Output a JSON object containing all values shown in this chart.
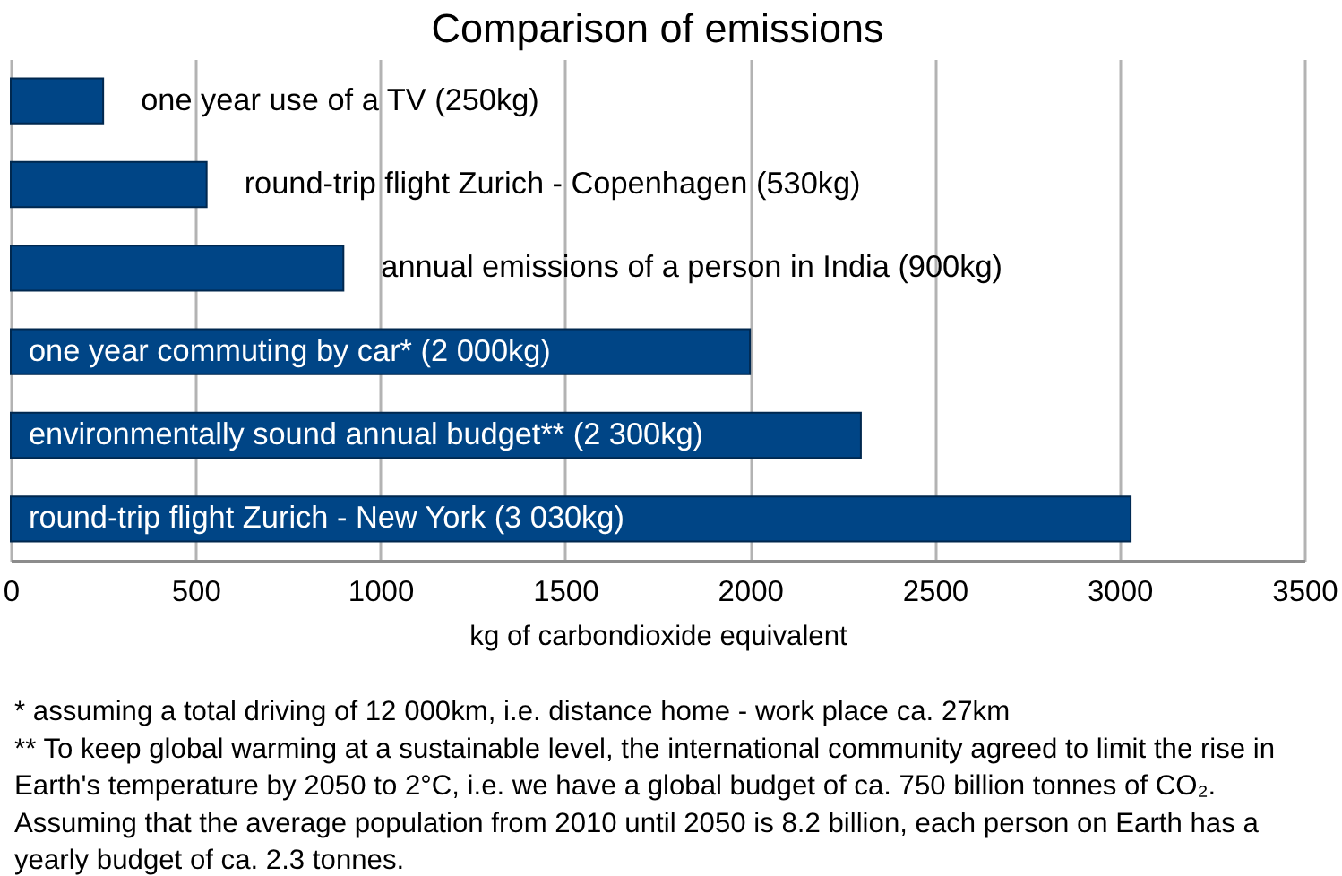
{
  "chart_data": {
    "type": "bar",
    "orientation": "horizontal",
    "title": "Comparison of emissions",
    "xlabel": "kg of carbondioxide equivalent",
    "categories": [
      "one year use of a TV (250kg)",
      "round-trip flight Zurich - Copenhagen (530kg)",
      "annual emissions of a person in India (900kg)",
      "one year commuting by car* (2 000kg)",
      "environmentally sound annual budget** (2 300kg)",
      "round-trip flight Zurich - New York (3 030kg)"
    ],
    "values": [
      250,
      530,
      900,
      2000,
      2300,
      3030
    ],
    "color": "#004586",
    "xlim": [
      0,
      3500
    ],
    "xticks": [
      0,
      500,
      1000,
      1500,
      2000,
      2500,
      3000,
      3500
    ],
    "grid": "x",
    "tick_labels": "x",
    "annotations": [
      "* assuming a total driving of 12 000km, i.e. distance home - work place ca. 27km",
      "**  To keep global warming at a sustainable level, the international community agreed to limit the rise in",
      "Earth's temperature by 2050 to 2°C, i.e. we have a global budget of ca. 750 billion tonnes of CO₂.",
      "Assuming that the average population from 2010 until 2050 is 8.2 billion, each person on Earth has a",
      "yearly budget of ca. 2.3 tonnes."
    ]
  }
}
